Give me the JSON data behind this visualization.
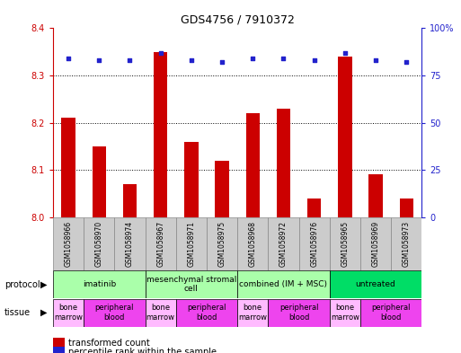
{
  "title": "GDS4756 / 7910372",
  "samples": [
    "GSM1058966",
    "GSM1058970",
    "GSM1058974",
    "GSM1058967",
    "GSM1058971",
    "GSM1058975",
    "GSM1058968",
    "GSM1058972",
    "GSM1058976",
    "GSM1058965",
    "GSM1058969",
    "GSM1058973"
  ],
  "red_values": [
    8.21,
    8.15,
    8.07,
    8.35,
    8.16,
    8.12,
    8.22,
    8.23,
    8.04,
    8.34,
    8.09,
    8.04
  ],
  "blue_values": [
    84,
    83,
    83,
    87,
    83,
    82,
    84,
    84,
    83,
    87,
    83,
    82
  ],
  "ylim_left": [
    8.0,
    8.4
  ],
  "ylim_right": [
    0,
    100
  ],
  "yticks_left": [
    8.0,
    8.1,
    8.2,
    8.3,
    8.4
  ],
  "yticks_right": [
    0,
    25,
    50,
    75,
    100
  ],
  "ytick_right_labels": [
    "0",
    "25",
    "50",
    "75",
    "100%"
  ],
  "protocols": [
    {
      "label": "imatinib",
      "start": 0,
      "end": 3,
      "color": "#aaffaa"
    },
    {
      "label": "mesenchymal stromal\ncell",
      "start": 3,
      "end": 6,
      "color": "#aaffaa"
    },
    {
      "label": "combined (IM + MSC)",
      "start": 6,
      "end": 9,
      "color": "#aaffaa"
    },
    {
      "label": "untreated",
      "start": 9,
      "end": 12,
      "color": "#00dd66"
    }
  ],
  "tissues": [
    {
      "label": "bone\nmarrow",
      "start": 0,
      "end": 1,
      "color": "#ffbbff"
    },
    {
      "label": "peripheral\nblood",
      "start": 1,
      "end": 3,
      "color": "#ee44ee"
    },
    {
      "label": "bone\nmarrow",
      "start": 3,
      "end": 4,
      "color": "#ffbbff"
    },
    {
      "label": "peripheral\nblood",
      "start": 4,
      "end": 6,
      "color": "#ee44ee"
    },
    {
      "label": "bone\nmarrow",
      "start": 6,
      "end": 7,
      "color": "#ffbbff"
    },
    {
      "label": "peripheral\nblood",
      "start": 7,
      "end": 9,
      "color": "#ee44ee"
    },
    {
      "label": "bone\nmarrow",
      "start": 9,
      "end": 10,
      "color": "#ffbbff"
    },
    {
      "label": "peripheral\nblood",
      "start": 10,
      "end": 12,
      "color": "#ee44ee"
    }
  ],
  "bar_color": "#cc0000",
  "dot_color": "#2222cc",
  "grid_color": "#000000",
  "left_axis_color": "#cc0000",
  "right_axis_color": "#2222cc",
  "sample_bg_color": "#cccccc",
  "sample_border_color": "#888888"
}
